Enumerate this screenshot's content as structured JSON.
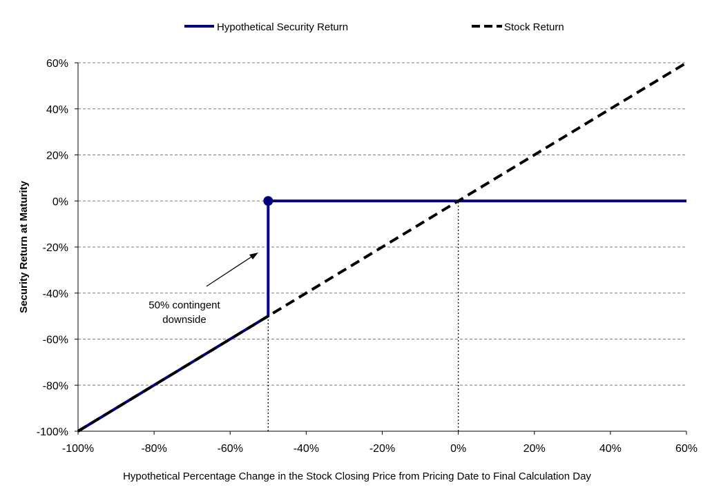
{
  "chart_data": {
    "type": "line",
    "title": "",
    "xlabel": "Hypothetical Percentage Change in the Stock Closing Price from Pricing Date to Final Calculation Day",
    "ylabel": "Security Return at Maturity",
    "xlim": [
      -100,
      60
    ],
    "ylim": [
      -100,
      60
    ],
    "x_ticks": [
      -100,
      -80,
      -60,
      -40,
      -20,
      0,
      20,
      40,
      60
    ],
    "y_ticks": [
      -100,
      -80,
      -60,
      -40,
      -20,
      0,
      20,
      40,
      60
    ],
    "x_tick_labels": [
      "-100%",
      "-80%",
      "-60%",
      "-40%",
      "-20%",
      "0%",
      "20%",
      "40%",
      "60%"
    ],
    "y_tick_labels": [
      "-100%",
      "-80%",
      "-60%",
      "-40%",
      "-20%",
      "0%",
      "20%",
      "40%",
      "60%"
    ],
    "grid": "horizontal dashed",
    "legend": {
      "position": "top",
      "entries": [
        "Hypothetical Security Return",
        "Stock Return"
      ]
    },
    "series": [
      {
        "name": "Hypothetical Security Return",
        "color": "#000080",
        "style": "solid",
        "points": [
          [
            -100,
            -100
          ],
          [
            -50,
            -50
          ],
          [
            -50,
            0
          ],
          [
            60,
            0
          ]
        ],
        "marker_point": [
          -50,
          0
        ]
      },
      {
        "name": "Stock Return",
        "color": "#000000",
        "style": "dashed",
        "points": [
          [
            -100,
            -100
          ],
          [
            60,
            60
          ]
        ]
      }
    ],
    "reference_lines": [
      {
        "x": -50,
        "from_y": -100,
        "to_y": -50
      },
      {
        "x": 0,
        "from_y": -100,
        "to_y": 0
      }
    ],
    "annotation": {
      "lines": [
        "50% contingent",
        "downside"
      ]
    }
  }
}
